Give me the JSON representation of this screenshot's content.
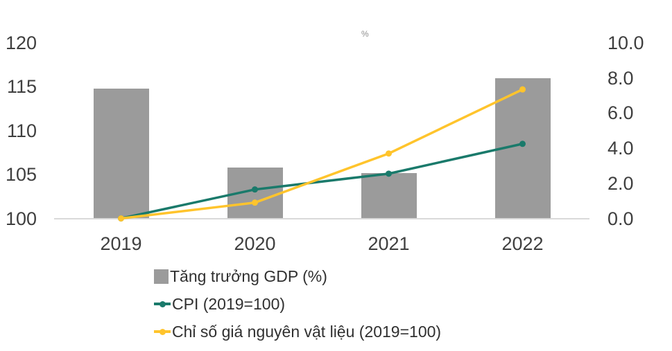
{
  "chart_data": {
    "type": "combo",
    "categories": [
      "2019",
      "2020",
      "2021",
      "2022"
    ],
    "series": [
      {
        "name": "Tăng trưởng GDP (%)",
        "type": "bar",
        "axis": "right",
        "color": "#9b9b9b",
        "values": [
          7.4,
          2.9,
          2.6,
          8.0
        ]
      },
      {
        "name": "CPI (2019=100)",
        "type": "line",
        "axis": "left",
        "color": "#1a7a6b",
        "values": [
          100.0,
          103.3,
          105.1,
          108.5
        ]
      },
      {
        "name": "Chỉ số giá nguyên vật liệu (2019=100)",
        "type": "line",
        "axis": "left",
        "color": "#ffc42c",
        "values": [
          100.0,
          101.8,
          107.4,
          114.7
        ]
      }
    ],
    "left_axis": {
      "min": 100,
      "max": 120,
      "ticks": [
        "120",
        "115",
        "110",
        "105",
        "100"
      ],
      "tick_values": [
        120,
        115,
        110,
        105,
        100
      ]
    },
    "right_axis": {
      "min": 0,
      "max": 10,
      "ticks": [
        "10.0",
        "8.0",
        "6.0",
        "4.0",
        "2.0",
        "0.0"
      ],
      "tick_values": [
        10,
        8,
        6,
        4,
        2,
        0
      ]
    },
    "title": "",
    "grid": false,
    "legend_position": "bottom-left",
    "axis_line_color": "#d9d9d9",
    "text_color": "#3f3f3f",
    "background": "#ffffff"
  },
  "annotations": {
    "stray_percent_mark": "%"
  }
}
